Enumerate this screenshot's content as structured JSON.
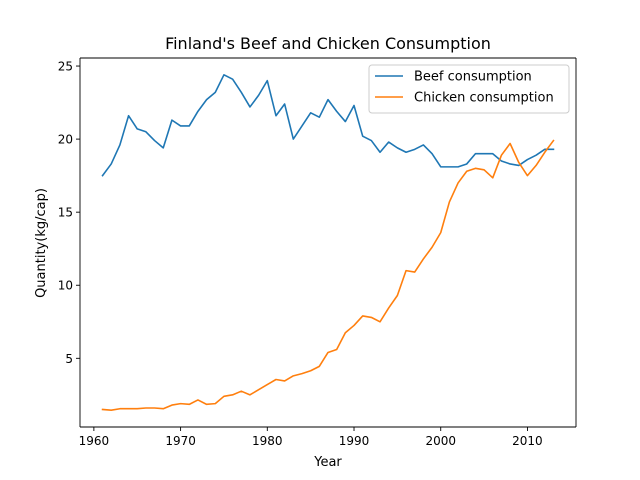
{
  "chart_data": {
    "type": "line",
    "title": "Finland's Beef and Chicken Consumption",
    "xlabel": "Year",
    "ylabel": "Quantity(kg/cap)",
    "xlim": [
      1958.4,
      2015.6
    ],
    "ylim": [
      0.3,
      25.55
    ],
    "xticks": [
      1960,
      1970,
      1980,
      1990,
      2000,
      2010
    ],
    "yticks": [
      5,
      10,
      15,
      20,
      25
    ],
    "grid": false,
    "legend_position": "upper right",
    "x": [
      1961,
      1962,
      1963,
      1964,
      1965,
      1966,
      1967,
      1968,
      1969,
      1970,
      1971,
      1972,
      1973,
      1974,
      1975,
      1976,
      1977,
      1978,
      1979,
      1980,
      1981,
      1982,
      1983,
      1984,
      1985,
      1986,
      1987,
      1988,
      1989,
      1990,
      1991,
      1992,
      1993,
      1994,
      1995,
      1996,
      1997,
      1998,
      1999,
      2000,
      2001,
      2002,
      2003,
      2004,
      2005,
      2006,
      2007,
      2008,
      2009,
      2010,
      2011,
      2012,
      2013
    ],
    "series": [
      {
        "name": "Beef consumption",
        "color": "#1f77b4",
        "values": [
          17.5,
          18.3,
          19.6,
          21.6,
          20.7,
          20.5,
          19.9,
          19.4,
          21.3,
          20.9,
          20.9,
          21.9,
          22.7,
          23.2,
          24.4,
          24.1,
          23.2,
          22.2,
          23.0,
          24.0,
          21.6,
          22.4,
          20.0,
          20.9,
          21.8,
          21.5,
          22.7,
          21.9,
          21.2,
          22.3,
          20.2,
          19.9,
          19.1,
          19.8,
          19.4,
          19.1,
          19.3,
          19.6,
          19.0,
          18.1,
          18.1,
          18.1,
          18.3,
          19.0,
          19.0,
          19.0,
          18.5,
          18.3,
          18.2,
          18.6,
          18.9,
          19.3,
          19.3
        ]
      },
      {
        "name": "Chicken consumption",
        "color": "#ff7f0e",
        "values": [
          1.5,
          1.45,
          1.55,
          1.55,
          1.55,
          1.6,
          1.6,
          1.55,
          1.8,
          1.9,
          1.85,
          2.15,
          1.85,
          1.9,
          2.4,
          2.5,
          2.75,
          2.5,
          2.85,
          3.2,
          3.55,
          3.45,
          3.8,
          3.95,
          4.15,
          4.45,
          5.4,
          5.6,
          6.75,
          7.25,
          7.9,
          7.8,
          7.5,
          8.45,
          9.3,
          11.0,
          10.9,
          11.8,
          12.6,
          13.6,
          15.7,
          17.0,
          17.8,
          18.0,
          17.9,
          17.35,
          18.9,
          19.7,
          18.4,
          17.5,
          18.2,
          19.1,
          19.9
        ]
      }
    ]
  }
}
